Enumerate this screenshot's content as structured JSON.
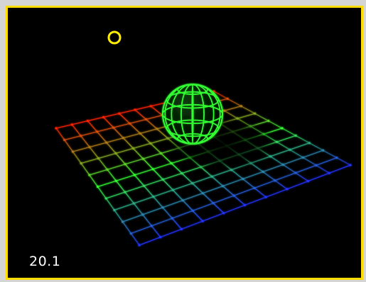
{
  "viewport": {
    "fps_readout": "20.1",
    "grid_divisions": 10,
    "sphere_rings": 5,
    "sphere_meridians": 8,
    "colors": {
      "frame_border": "#ffdd00",
      "background": "#000000",
      "window_chrome": "#d4d4d4",
      "light_marker": "#ffee00",
      "sphere": "#33ff33",
      "grid_near": "#ff2200",
      "grid_mid": "#33ff33",
      "grid_far": "#2233ff"
    },
    "icons": {
      "light_marker": "ring-icon"
    }
  }
}
